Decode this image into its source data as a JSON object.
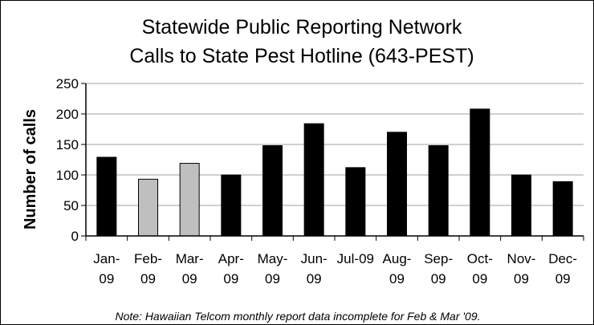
{
  "chart_data": {
    "type": "bar",
    "title": [
      "Statewide Public Reporting Network",
      "Calls to State Pest Hotline (643-PEST)"
    ],
    "ylabel": "Number of calls",
    "xlabel": "",
    "ylim": [
      0,
      250
    ],
    "yticks": [
      0,
      50,
      100,
      150,
      200,
      250
    ],
    "grid": true,
    "legend": "none",
    "categories": [
      [
        "Jan-",
        "09"
      ],
      [
        "Feb-",
        "09"
      ],
      [
        "Mar-",
        "09"
      ],
      [
        "Apr-",
        "09"
      ],
      [
        "May-",
        "09"
      ],
      [
        "Jun-",
        "09"
      ],
      [
        "Jul-09"
      ],
      [
        "Aug-",
        "09"
      ],
      [
        "Sep-",
        "09"
      ],
      [
        "Oct-",
        "09"
      ],
      [
        "Nov-",
        "09"
      ],
      [
        "Dec-",
        "09"
      ]
    ],
    "values": [
      129,
      93,
      119,
      100,
      148,
      184,
      112,
      170,
      148,
      208,
      100,
      89
    ],
    "highlighted": [
      false,
      true,
      true,
      false,
      false,
      false,
      false,
      false,
      false,
      false,
      false,
      false
    ],
    "colors": {
      "bar": "#000000",
      "bar_highlight": "#bfbfbf",
      "grid": "#a0a0a0",
      "axis": "#000000"
    },
    "note": "Note:  Hawaiian Telcom monthly report data incomplete for Feb & Mar '09."
  }
}
